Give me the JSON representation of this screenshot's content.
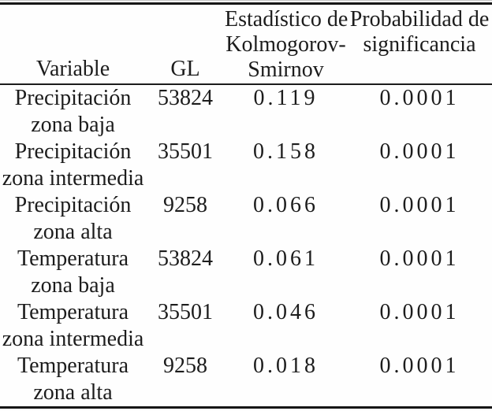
{
  "table": {
    "columns": [
      "Variable",
      "GL",
      "Estadístico de\nKolmogorov-\nSmirnov",
      "Probabilidad de\nsignificancia"
    ],
    "rows": [
      {
        "variable": "Precipitación\nzona baja",
        "gl": "53824",
        "ks": "0.119",
        "p": "0.0001"
      },
      {
        "variable": "Precipitación\nzona intermedia",
        "gl": "35501",
        "ks": "0.158",
        "p": "0.0001"
      },
      {
        "variable": "Precipitación\nzona alta",
        "gl": "9258",
        "ks": "0.066",
        "p": "0.0001"
      },
      {
        "variable": "Temperatura\nzona baja",
        "gl": "53824",
        "ks": "0.061",
        "p": "0.0001"
      },
      {
        "variable": "Temperatura\nzona intermedia",
        "gl": "35501",
        "ks": "0.046",
        "p": "0.0001"
      },
      {
        "variable": "Temperatura\nzona alta",
        "gl": "9258",
        "ks": "0.018",
        "p": "0.0001"
      }
    ]
  },
  "chart_data": {
    "type": "table",
    "title": "",
    "columns": [
      "Variable",
      "GL",
      "Estadístico de Kolmogorov-Smirnov",
      "Probabilidad de significancia"
    ],
    "rows": [
      [
        "Precipitación zona baja",
        53824,
        0.119,
        0.0001
      ],
      [
        "Precipitación zona intermedia",
        35501,
        0.158,
        0.0001
      ],
      [
        "Precipitación zona alta",
        9258,
        0.066,
        0.0001
      ],
      [
        "Temperatura zona baja",
        53824,
        0.061,
        0.0001
      ],
      [
        "Temperatura zona intermedia",
        35501,
        0.046,
        0.0001
      ],
      [
        "Temperatura zona alta",
        9258,
        0.018,
        0.0001
      ]
    ]
  },
  "colors": {
    "text": "#1c1c1c",
    "rule": "#161616",
    "background": "#fefefe"
  }
}
